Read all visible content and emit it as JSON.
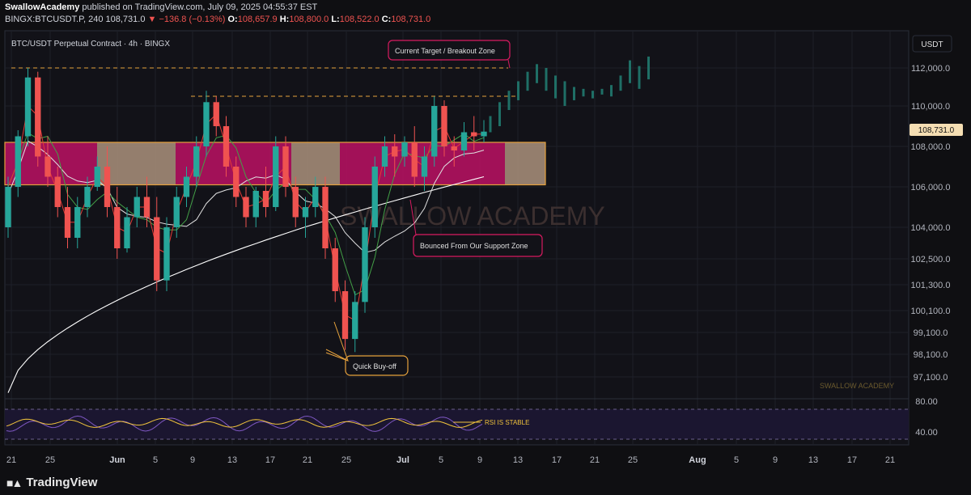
{
  "header": {
    "author": "SwallowAcademy",
    "published_text": "published on TradingView.com, July 09, 2025 04:55:37 EST",
    "symbol": "BINGX:BTCUSDT.P, 240",
    "last": "108,731.0",
    "change": "▼ −136.8 (−0.13%)",
    "o_label": "O:",
    "o_value": "108,657.9",
    "h_label": "H:",
    "h_value": "108,800.0",
    "l_label": "L:",
    "l_value": "108,522.0",
    "c_label": "C:",
    "c_value": "108,731.0"
  },
  "chart_title": "BTC/USDT Perpetual Contract · 4h · BINGX",
  "currency_button": "USDT",
  "current_price_label": "108,731.0",
  "annotations": {
    "target": "Current Target / Breakout Zone",
    "bounce": "Bounced From Our Support Zone",
    "buyoff": "Quick Buy-off",
    "rsi": "RSI IS STABLE",
    "watermark": "SWALLOW ACADEMY",
    "watermark_small": "SWALLOW ACADEMY"
  },
  "footer": {
    "brand": "TradingView",
    "logo_icon": "tradingview-logo-icon"
  },
  "colors": {
    "background": "#0f0f12",
    "up": "#26a69a",
    "down": "#ef5350",
    "zone_magenta": "#b3125f",
    "zone_tan": "#a38b77",
    "orange_dash": "#e6a23c",
    "annotation_border": "#d81b60",
    "ema_short": "#e53935",
    "ema_mid": "#43a047",
    "ema_long": "#ffffff",
    "rsi_line": "#7e57c2",
    "rsi_ma": "#f0c33c"
  },
  "chart_data": {
    "type": "candlestick",
    "x_ticks": [
      "21",
      "25",
      "Jun",
      "5",
      "9",
      "13",
      "17",
      "21",
      "25",
      "Jul",
      "5",
      "9",
      "13",
      "17",
      "21",
      "25",
      "Aug",
      "5",
      "9",
      "13",
      "17",
      "21"
    ],
    "y_ticks": [
      "112,000.0",
      "110,000.0",
      "108,000.0",
      "106,000.0",
      "104,000.0",
      "102,500.0",
      "101,300.0",
      "100,100.0",
      "99,100.0",
      "98,100.0",
      "97,100.0"
    ],
    "rsi_ticks": [
      "80.00",
      "40.00"
    ],
    "close_price": 108731.0,
    "target_level": 111850,
    "resistance_level": 110500,
    "zone": {
      "low": 106100,
      "high": 108200
    },
    "candles": [
      [
        104000,
        106500,
        103500,
        106000
      ],
      [
        106000,
        108800,
        105500,
        108500
      ],
      [
        108500,
        112000,
        108000,
        111500
      ],
      [
        111500,
        111800,
        107000,
        107500
      ],
      [
        107500,
        108500,
        106000,
        106500
      ],
      [
        106500,
        107000,
        104500,
        105000
      ],
      [
        105000,
        106000,
        103000,
        103500
      ],
      [
        103500,
        105500,
        103000,
        105000
      ],
      [
        105000,
        106500,
        104500,
        106000
      ],
      [
        106000,
        107500,
        105800,
        107000
      ],
      [
        107000,
        108000,
        104500,
        105000
      ],
      [
        105000,
        106000,
        102500,
        103000
      ],
      [
        103000,
        105000,
        102800,
        104500
      ],
      [
        104500,
        106000,
        104000,
        105500
      ],
      [
        105500,
        106500,
        104000,
        104500
      ],
      [
        104500,
        105500,
        101000,
        101500
      ],
      [
        101500,
        104500,
        101000,
        104000
      ],
      [
        104000,
        106000,
        103500,
        105500
      ],
      [
        105500,
        107000,
        105000,
        106500
      ],
      [
        106500,
        108500,
        106000,
        108000
      ],
      [
        108000,
        110800,
        107500,
        110200
      ],
      [
        110200,
        110500,
        108500,
        109000
      ],
      [
        109000,
        109500,
        106500,
        107000
      ],
      [
        107000,
        107500,
        105000,
        105500
      ],
      [
        105500,
        106000,
        104000,
        104500
      ],
      [
        104500,
        106000,
        104000,
        105800
      ],
      [
        105800,
        107000,
        104500,
        105000
      ],
      [
        105000,
        108500,
        104800,
        108000
      ],
      [
        108000,
        108500,
        105500,
        106000
      ],
      [
        106000,
        106500,
        104000,
        104500
      ],
      [
        104500,
        105500,
        103500,
        105000
      ],
      [
        105000,
        106500,
        104500,
        106000
      ],
      [
        106000,
        106500,
        102500,
        103000
      ],
      [
        103000,
        103500,
        100500,
        101000
      ],
      [
        101000,
        101500,
        98300,
        98800
      ],
      [
        98800,
        101000,
        98200,
        100500
      ],
      [
        100500,
        104500,
        100000,
        104000
      ],
      [
        104000,
        107500,
        103500,
        107000
      ],
      [
        107000,
        108500,
        106500,
        108000
      ],
      [
        108000,
        108600,
        106500,
        107500
      ],
      [
        107500,
        108500,
        107000,
        108200
      ],
      [
        108200,
        109000,
        106000,
        106500
      ],
      [
        106500,
        108000,
        105800,
        107500
      ],
      [
        107500,
        110500,
        107000,
        110000
      ],
      [
        110000,
        110300,
        107500,
        108000
      ],
      [
        108000,
        108500,
        107000,
        107800
      ],
      [
        107800,
        109200,
        107500,
        108700
      ],
      [
        108700,
        109500,
        107800,
        108500
      ],
      [
        108500,
        109300,
        108200,
        108731
      ]
    ],
    "projection": [
      [
        108700,
        109500
      ],
      [
        109000,
        110200
      ],
      [
        109800,
        110800
      ],
      [
        110300,
        111300
      ],
      [
        110800,
        111800
      ],
      [
        111200,
        112200
      ],
      [
        110800,
        112000
      ],
      [
        110400,
        111600
      ],
      [
        110000,
        111300
      ],
      [
        110300,
        111000
      ],
      [
        110500,
        110900
      ],
      [
        110400,
        110800
      ],
      [
        110600,
        110900
      ],
      [
        110500,
        111100
      ],
      [
        110800,
        111600
      ],
      [
        111200,
        112400
      ],
      [
        110900,
        112100
      ],
      [
        111400,
        112600
      ]
    ]
  }
}
